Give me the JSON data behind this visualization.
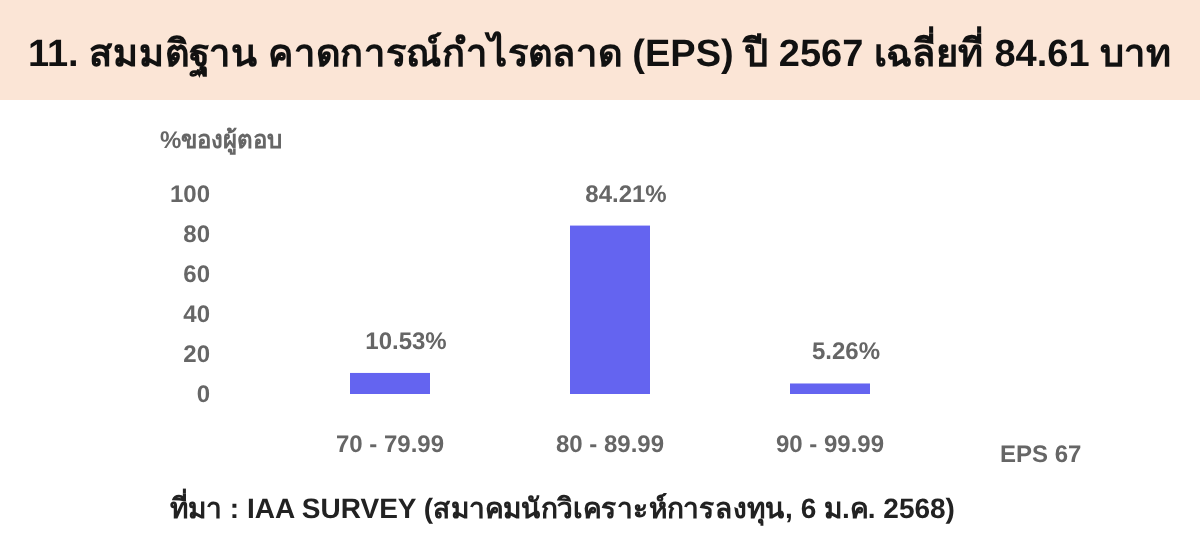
{
  "chart_data": {
    "type": "bar",
    "title": "11. สมมติฐาน คาดการณ์กำไรตลาด (EPS) ปี 2567 เฉลี่ยที่ 84.61 บาท",
    "ylabel": "%ของผู้ตอบ",
    "xlabel": "EPS 67",
    "categories": [
      "70 - 79.99",
      "80 - 89.99",
      "90 - 99.99"
    ],
    "values": [
      10.53,
      84.21,
      5.26
    ],
    "value_labels": [
      "10.53%",
      "84.21%",
      "5.26%"
    ],
    "color": "#6464f0",
    "ylim": [
      0,
      100
    ],
    "yticks": [
      0,
      20,
      40,
      60,
      80,
      100
    ],
    "annotations": [
      "ที่มา : IAA SURVEY (สมาคมนักวิเคราะห์การลงทุน, 6 ม.ค. 2568)"
    ]
  }
}
